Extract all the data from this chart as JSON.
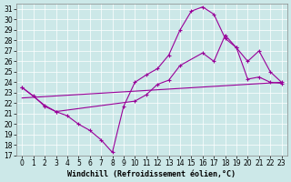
{
  "xlabel": "Windchill (Refroidissement éolien,°C)",
  "bg_color": "#cce8e8",
  "line_color": "#990099",
  "xlim": [
    -0.5,
    23.5
  ],
  "ylim": [
    17,
    31.5
  ],
  "xticks": [
    0,
    1,
    2,
    3,
    4,
    5,
    6,
    7,
    8,
    9,
    10,
    11,
    12,
    13,
    14,
    15,
    16,
    17,
    18,
    19,
    20,
    21,
    22,
    23
  ],
  "yticks": [
    17,
    18,
    19,
    20,
    21,
    22,
    23,
    24,
    25,
    26,
    27,
    28,
    29,
    30,
    31
  ],
  "series1_x": [
    0,
    1,
    2,
    3,
    4,
    5,
    6,
    7,
    8,
    9,
    10,
    11,
    12,
    13,
    14,
    15,
    16,
    17,
    18,
    19,
    20,
    21,
    22,
    23
  ],
  "series1_y": [
    23.5,
    22.7,
    21.7,
    21.2,
    20.8,
    20.0,
    19.4,
    18.5,
    17.3,
    21.7,
    24.0,
    24.7,
    25.3,
    26.6,
    29.0,
    30.8,
    31.2,
    30.5,
    28.2,
    27.3,
    24.3,
    24.5,
    24.0,
    23.9
  ],
  "series2_x": [
    0,
    2,
    3,
    10,
    11,
    12,
    13,
    14,
    16,
    17,
    18,
    19,
    20,
    21,
    22,
    23
  ],
  "series2_y": [
    23.5,
    21.8,
    21.2,
    22.2,
    22.8,
    23.8,
    24.2,
    25.6,
    26.8,
    26.0,
    28.5,
    27.3,
    26.0,
    27.0,
    25.0,
    24.0
  ],
  "series3_x": [
    0,
    23
  ],
  "series3_y": [
    22.5,
    24.0
  ],
  "xlabel_fontsize": 6,
  "tick_fontsize": 5.5
}
